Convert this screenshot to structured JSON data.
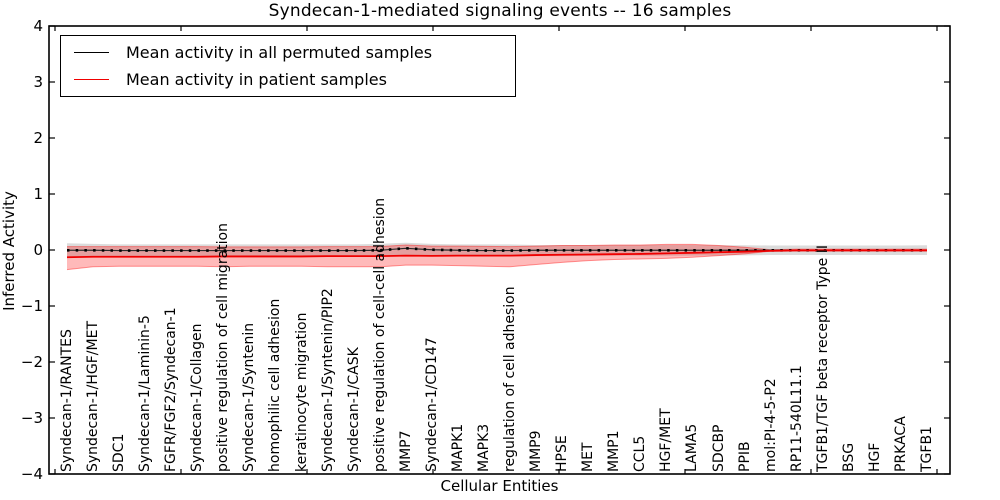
{
  "chart_data": {
    "type": "line",
    "title": "Syndecan-1-mediated signaling events -- 16 samples",
    "xlabel": "Cellular Entities",
    "ylabel": "Inferred Activity",
    "ylim": [
      -4,
      4
    ],
    "yticks": [
      4,
      3,
      2,
      1,
      0,
      -1,
      -2,
      -3,
      -4
    ],
    "ytick_labels": [
      "4",
      "3",
      "2",
      "1",
      "0",
      "−1",
      "−2",
      "−3",
      "−4"
    ],
    "legend_position": "upper left",
    "grid": false,
    "categories": [
      "Syndecan-1/RANTES",
      "Syndecan-1/HGF/MET",
      "SDC1",
      "Syndecan-1/Laminin-5",
      "FGFR/FGF2/Syndecan-1",
      "Syndecan-1/Collagen",
      "positive regulation of cell migration",
      "Syndecan-1/Syntenin",
      "homophilic cell adhesion",
      "keratinocyte migration",
      "Syndecan-1/Syntenin/PIP2",
      "Syndecan-1/CASK",
      "positive regulation of cell-cell adhesion",
      "MMP7",
      "Syndecan-1/CD147",
      "MAPK1",
      "MAPK3",
      "regulation of cell adhesion",
      "MMP9",
      "HPSE",
      "MET",
      "MMP1",
      "CCL5",
      "HGF/MET",
      "LAMA5",
      "SDCBP",
      "PPIB",
      "mol:PI-4-5-P2",
      "RP11-540L11.1",
      "TGFB1/TGF beta receptor Type II",
      "BSG",
      "HGF",
      "PRKACA",
      "TGFB1"
    ],
    "series": [
      {
        "name": "Mean activity in all permuted samples",
        "color": "#000000",
        "band_color": "rgba(0,0,0,0.14)",
        "values": [
          -0.005,
          -0.005,
          -0.01,
          -0.01,
          -0.01,
          -0.01,
          -0.01,
          -0.01,
          -0.01,
          -0.01,
          -0.01,
          -0.01,
          -0.005,
          0.03,
          0.005,
          -0.005,
          -0.01,
          -0.01,
          -0.005,
          -0.005,
          -0.005,
          -0.005,
          -0.005,
          -0.005,
          -0.005,
          -0.005,
          -0.005,
          -0.005,
          -0.005,
          -0.005,
          -0.005,
          -0.005,
          -0.005,
          -0.005
        ],
        "band_upper": [
          0.12,
          0.11,
          0.1,
          0.1,
          0.1,
          0.1,
          0.1,
          0.1,
          0.1,
          0.1,
          0.1,
          0.1,
          0.11,
          0.13,
          0.11,
          0.1,
          0.1,
          0.1,
          0.09,
          0.09,
          0.09,
          0.09,
          0.09,
          0.09,
          0.09,
          0.085,
          0.085,
          0.08,
          0.08,
          0.08,
          0.08,
          0.08,
          0.08,
          0.085
        ],
        "band_lower": [
          -0.13,
          -0.125,
          -0.12,
          -0.12,
          -0.12,
          -0.12,
          -0.12,
          -0.12,
          -0.12,
          -0.12,
          -0.115,
          -0.115,
          -0.115,
          -0.09,
          -0.11,
          -0.115,
          -0.115,
          -0.115,
          -0.11,
          -0.11,
          -0.105,
          -0.1,
          -0.1,
          -0.1,
          -0.1,
          -0.095,
          -0.095,
          -0.09,
          -0.09,
          -0.09,
          -0.09,
          -0.09,
          -0.09,
          -0.09
        ]
      },
      {
        "name": "Mean activity in patient samples",
        "color": "#f00000",
        "band_color": "rgba(255,0,0,0.27)",
        "values": [
          -0.13,
          -0.12,
          -0.12,
          -0.12,
          -0.12,
          -0.12,
          -0.115,
          -0.115,
          -0.115,
          -0.115,
          -0.11,
          -0.11,
          -0.11,
          -0.1,
          -0.105,
          -0.1,
          -0.1,
          -0.1,
          -0.09,
          -0.085,
          -0.08,
          -0.075,
          -0.07,
          -0.06,
          -0.05,
          -0.04,
          -0.03,
          -0.015,
          -0.008,
          -0.008,
          -0.008,
          -0.008,
          -0.008,
          -0.008
        ],
        "band_upper": [
          0.06,
          0.06,
          0.06,
          0.06,
          0.06,
          0.06,
          0.055,
          0.055,
          0.055,
          0.055,
          0.06,
          0.06,
          0.06,
          0.09,
          0.07,
          0.07,
          0.065,
          0.06,
          0.07,
          0.08,
          0.08,
          0.09,
          0.09,
          0.1,
          0.1,
          0.08,
          0.05,
          0.005,
          0.015,
          0.015,
          0.015,
          0.015,
          0.015,
          0.015
        ],
        "band_lower": [
          -0.35,
          -0.3,
          -0.29,
          -0.29,
          -0.29,
          -0.29,
          -0.3,
          -0.29,
          -0.29,
          -0.29,
          -0.3,
          -0.3,
          -0.3,
          -0.27,
          -0.27,
          -0.28,
          -0.29,
          -0.3,
          -0.26,
          -0.22,
          -0.19,
          -0.17,
          -0.16,
          -0.15,
          -0.13,
          -0.1,
          -0.07,
          -0.02,
          -0.018,
          -0.018,
          -0.018,
          -0.018,
          -0.018,
          -0.018
        ]
      }
    ]
  }
}
